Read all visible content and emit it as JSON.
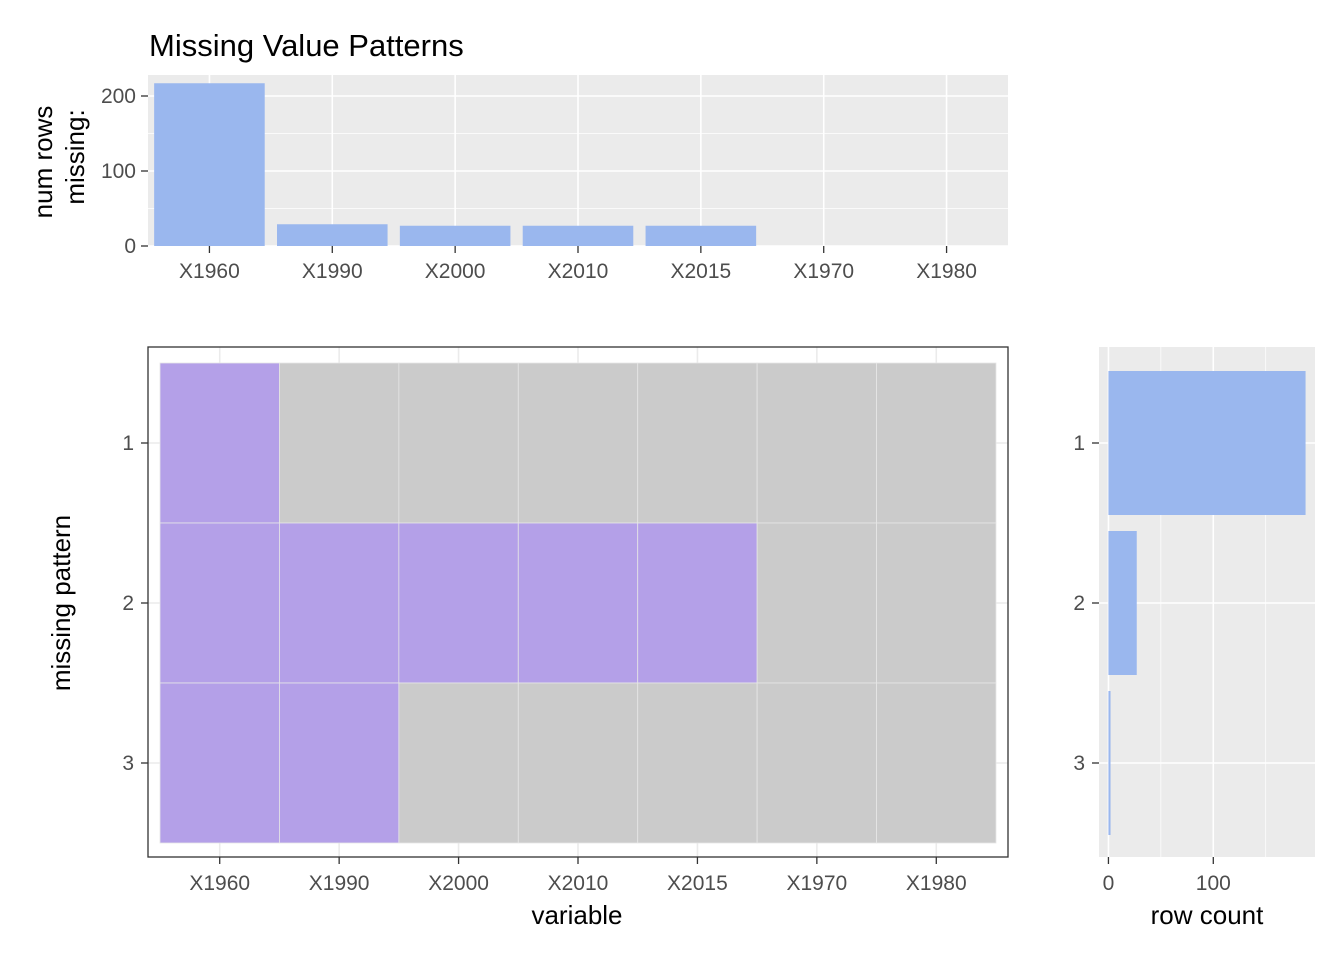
{
  "title": "Missing Value Patterns",
  "colors": {
    "bar": "#9ab7ee",
    "missing": "#b4a0e8",
    "present": "#cbcbcb",
    "panel_bg": "#ebebeb",
    "grid": "#ffffff"
  },
  "chart_data": [
    {
      "id": "top",
      "type": "bar",
      "ylabel_lines": [
        "num rows",
        "missing:"
      ],
      "xlabel": "",
      "categories": [
        "X1960",
        "X1990",
        "X2000",
        "X2010",
        "X2015",
        "X1970",
        "X1980"
      ],
      "values": [
        217,
        29,
        27,
        27,
        27,
        0,
        0
      ],
      "ylim": [
        0,
        228
      ],
      "yticks": [
        0,
        100,
        200
      ]
    },
    {
      "id": "main",
      "type": "heatmap",
      "xlabel": "variable",
      "ylabel": "missing pattern",
      "columns": [
        "X1960",
        "X1990",
        "X2000",
        "X2010",
        "X2015",
        "X1970",
        "X1980"
      ],
      "rows": [
        "1",
        "2",
        "3"
      ],
      "missing": [
        [
          true,
          false,
          false,
          false,
          false,
          false,
          false
        ],
        [
          true,
          true,
          true,
          true,
          true,
          false,
          false
        ],
        [
          true,
          true,
          false,
          false,
          false,
          false,
          false
        ]
      ]
    },
    {
      "id": "right",
      "type": "bar",
      "orientation": "horizontal",
      "xlabel": "row count",
      "categories": [
        "1",
        "2",
        "3"
      ],
      "values": [
        188,
        27,
        2
      ],
      "xlim": [
        -9,
        197
      ],
      "xticks": [
        0,
        100
      ]
    }
  ]
}
